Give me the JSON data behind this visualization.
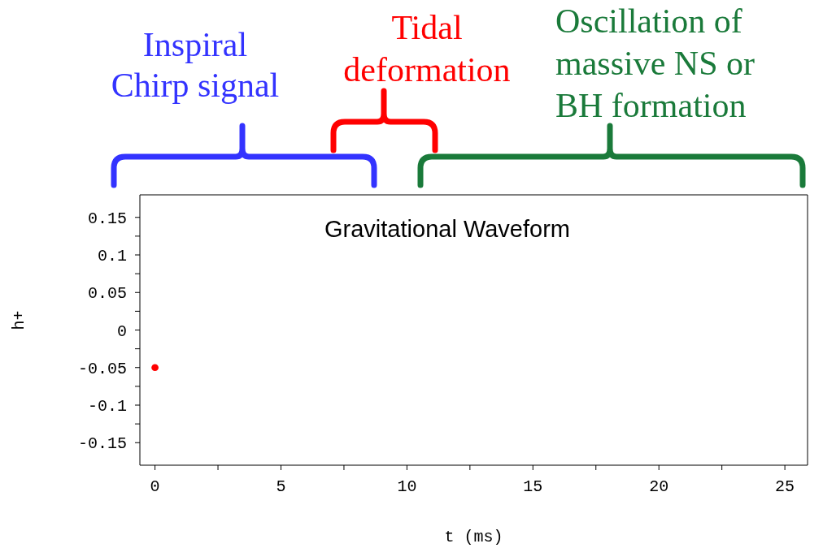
{
  "chart_data": {
    "type": "scatter",
    "title": "Gravitational Waveform",
    "xlabel": "t (ms)",
    "ylabel": "h+",
    "x": [
      0
    ],
    "values": [
      -0.05
    ],
    "color": "#ff0000",
    "xlim": [
      -0.6,
      25.9
    ],
    "xticks": [
      0,
      {
        "value": 2.5,
        "label": null
      },
      5,
      {
        "value": 7.5,
        "label": null
      },
      10,
      {
        "value": 12.5,
        "label": null
      },
      15,
      {
        "value": 17.5,
        "label": null
      },
      20,
      {
        "value": 22.5,
        "label": null
      },
      25
    ],
    "ylim": [
      -0.18,
      0.18
    ],
    "yticks": [
      -0.15,
      {
        "value": -0.125,
        "label": null
      },
      -0.1,
      {
        "value": -0.075,
        "label": null
      },
      -0.05,
      {
        "value": -0.025,
        "label": null
      },
      0,
      {
        "value": 0.025,
        "label": null
      },
      0.05,
      {
        "value": 0.075,
        "label": null
      },
      0.1,
      {
        "value": 0.125,
        "label": null
      },
      0.15
    ],
    "annotations": [
      "Inspiral\nChirp signal",
      "Tidal\ndeformation",
      "Oscillation of\nmassive NS or\nBH formation"
    ]
  }
}
